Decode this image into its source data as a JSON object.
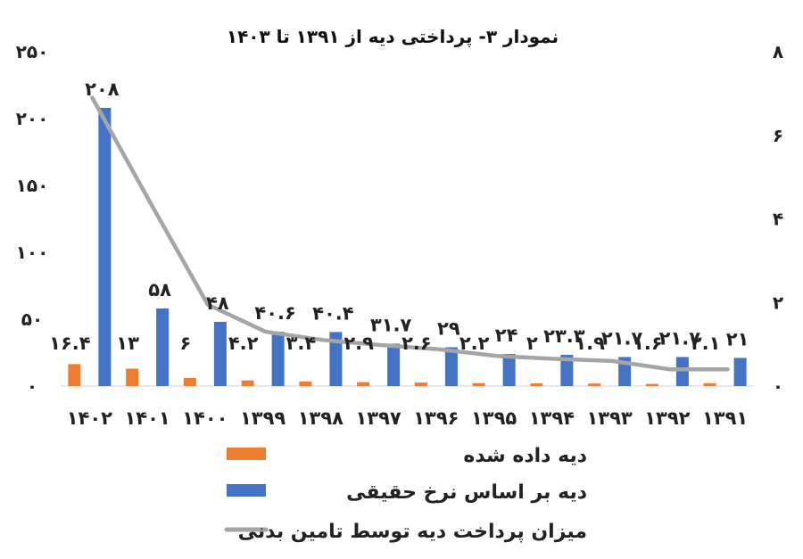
{
  "chart_data": {
    "type": "bar",
    "title": "نمودار ۳- پرداختی دیه از ۱۳۹۱ تا ۱۴۰۳",
    "categories": [
      "۱۴۰۲",
      "۱۴۰۱",
      "۱۴۰۰",
      "۱۳۹۹",
      "۱۳۹۸",
      "۱۳۹۷",
      "۱۳۹۶",
      "۱۳۹۵",
      "۱۳۹۴",
      "۱۳۹۳",
      "۱۳۹۲",
      "۱۳۹۱"
    ],
    "series": [
      {
        "name": "دیه داده شده",
        "type": "bar",
        "axis": "left",
        "color": "#ED7D31",
        "values": [
          16.4,
          13,
          6,
          4.2,
          3.4,
          2.9,
          2.6,
          2.2,
          2,
          1.9,
          1.6,
          2.1
        ],
        "labels": [
          "۱۶.۴",
          "۱۳",
          "۶",
          "۴.۲",
          "۳.۴",
          "۲.۹",
          "۲.۶",
          "۲.۲",
          "۲",
          "۱.۹",
          "۱.۶",
          "۲.۱"
        ]
      },
      {
        "name": "دیه بر اساس نرخ حقیقی",
        "type": "bar",
        "axis": "left",
        "color": "#4472C4",
        "values": [
          208,
          58,
          48,
          40.6,
          40.4,
          31.7,
          29,
          24,
          23.3,
          21.7,
          21.7,
          21
        ],
        "labels": [
          "۲۰۸",
          "۵۸",
          "۴۸",
          "۴۰.۶",
          "۴۰.۴",
          "۳۱.۷",
          "۲۹",
          "۲۴",
          "۲۳.۳",
          "۲۱.۷",
          "۲۱.۷",
          "۲۱"
        ]
      },
      {
        "name": "میزان پرداخت دیه توسط تامین بدنی",
        "type": "line",
        "axis": "right",
        "color": "#A5A5A5",
        "values": [
          6.9,
          4.4,
          1.95,
          1.3,
          1.1,
          0.98,
          0.88,
          0.72,
          0.65,
          0.6,
          0.4,
          0.4
        ]
      }
    ],
    "y_left": {
      "min": 0,
      "max": 250,
      "ticks": [
        0,
        50,
        100,
        150,
        200,
        250
      ],
      "tick_labels": [
        "۰",
        "۵۰",
        "۱۰۰",
        "۱۵۰",
        "۲۰۰",
        "۲۵۰"
      ]
    },
    "y_right": {
      "min": 0,
      "max": 8,
      "ticks": [
        0,
        2,
        4,
        6,
        8
      ],
      "tick_labels": [
        "۰",
        "۲",
        "۴",
        "۶",
        "۸"
      ]
    },
    "grid": false,
    "legend": "bottom-center"
  }
}
